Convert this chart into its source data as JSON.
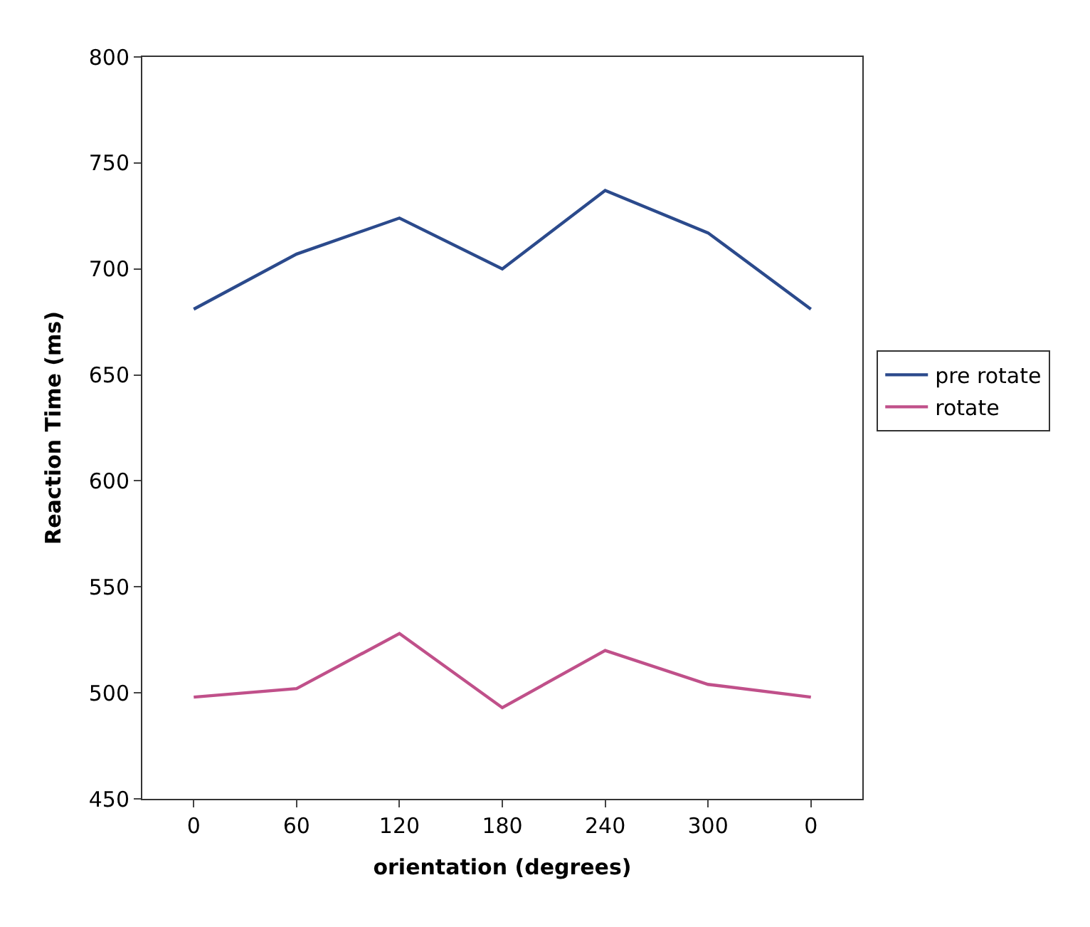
{
  "chart_data": {
    "type": "line",
    "xlabel": "orientation (degrees)",
    "ylabel": "Reaction Time (ms)",
    "categories": [
      "0",
      "60",
      "120",
      "180",
      "240",
      "300",
      "0"
    ],
    "series": [
      {
        "name": "pre rotate",
        "color": "#2b4a8c",
        "values": [
          681,
          707,
          724,
          700,
          737,
          717,
          681
        ]
      },
      {
        "name": "rotate",
        "color": "#c0508a",
        "values": [
          498,
          502,
          528,
          493,
          520,
          504,
          498
        ]
      }
    ],
    "ylim": [
      450,
      800
    ],
    "yticks": [
      450,
      500,
      550,
      600,
      650,
      700,
      750,
      800
    ],
    "legend": "right",
    "marker": "none",
    "line_style": "solid"
  }
}
